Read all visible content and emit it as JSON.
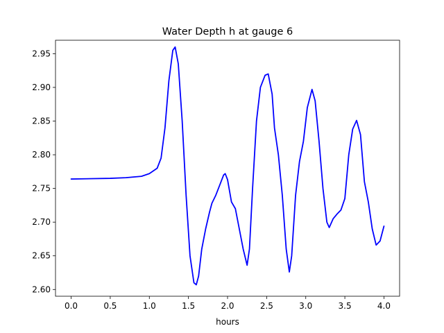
{
  "chart_data": {
    "type": "line",
    "title": "Water Depth h at gauge 6",
    "xlabel": "hours",
    "ylabel": "",
    "xlim": [
      -0.2,
      4.2
    ],
    "ylim": [
      2.59,
      2.97
    ],
    "xticks": [
      0.0,
      0.5,
      1.0,
      1.5,
      2.0,
      2.5,
      3.0,
      3.5,
      4.0
    ],
    "xtick_labels": [
      "0.0",
      "0.5",
      "1.0",
      "1.5",
      "2.0",
      "2.5",
      "3.0",
      "3.5",
      "4.0"
    ],
    "yticks": [
      2.6,
      2.65,
      2.7,
      2.75,
      2.8,
      2.85,
      2.9,
      2.95
    ],
    "ytick_labels": [
      "2.60",
      "2.65",
      "2.70",
      "2.75",
      "2.80",
      "2.85",
      "2.90",
      "2.95"
    ],
    "grid": false,
    "series": [
      {
        "color": "#0000ff",
        "points": [
          [
            0.0,
            2.764
          ],
          [
            0.5,
            2.765
          ],
          [
            0.7,
            2.766
          ],
          [
            0.9,
            2.768
          ],
          [
            1.0,
            2.772
          ],
          [
            1.1,
            2.78
          ],
          [
            1.15,
            2.795
          ],
          [
            1.2,
            2.84
          ],
          [
            1.25,
            2.91
          ],
          [
            1.3,
            2.955
          ],
          [
            1.33,
            2.96
          ],
          [
            1.37,
            2.935
          ],
          [
            1.42,
            2.85
          ],
          [
            1.47,
            2.74
          ],
          [
            1.52,
            2.65
          ],
          [
            1.57,
            2.61
          ],
          [
            1.6,
            2.607
          ],
          [
            1.63,
            2.62
          ],
          [
            1.67,
            2.66
          ],
          [
            1.72,
            2.69
          ],
          [
            1.77,
            2.715
          ],
          [
            1.8,
            2.728
          ],
          [
            1.85,
            2.74
          ],
          [
            1.9,
            2.755
          ],
          [
            1.95,
            2.77
          ],
          [
            1.97,
            2.772
          ],
          [
            2.0,
            2.763
          ],
          [
            2.05,
            2.73
          ],
          [
            2.1,
            2.72
          ],
          [
            2.15,
            2.69
          ],
          [
            2.2,
            2.66
          ],
          [
            2.25,
            2.636
          ],
          [
            2.28,
            2.66
          ],
          [
            2.32,
            2.75
          ],
          [
            2.37,
            2.85
          ],
          [
            2.42,
            2.9
          ],
          [
            2.48,
            2.918
          ],
          [
            2.52,
            2.92
          ],
          [
            2.57,
            2.89
          ],
          [
            2.6,
            2.84
          ],
          [
            2.65,
            2.8
          ],
          [
            2.7,
            2.74
          ],
          [
            2.75,
            2.66
          ],
          [
            2.79,
            2.626
          ],
          [
            2.82,
            2.65
          ],
          [
            2.87,
            2.74
          ],
          [
            2.92,
            2.79
          ],
          [
            2.97,
            2.82
          ],
          [
            3.02,
            2.87
          ],
          [
            3.08,
            2.897
          ],
          [
            3.12,
            2.88
          ],
          [
            3.17,
            2.82
          ],
          [
            3.22,
            2.75
          ],
          [
            3.27,
            2.7
          ],
          [
            3.3,
            2.692
          ],
          [
            3.35,
            2.705
          ],
          [
            3.4,
            2.712
          ],
          [
            3.45,
            2.718
          ],
          [
            3.5,
            2.735
          ],
          [
            3.55,
            2.8
          ],
          [
            3.6,
            2.838
          ],
          [
            3.65,
            2.851
          ],
          [
            3.7,
            2.83
          ],
          [
            3.75,
            2.76
          ],
          [
            3.8,
            2.73
          ],
          [
            3.85,
            2.69
          ],
          [
            3.9,
            2.666
          ],
          [
            3.95,
            2.672
          ],
          [
            4.0,
            2.694
          ]
        ]
      }
    ]
  }
}
